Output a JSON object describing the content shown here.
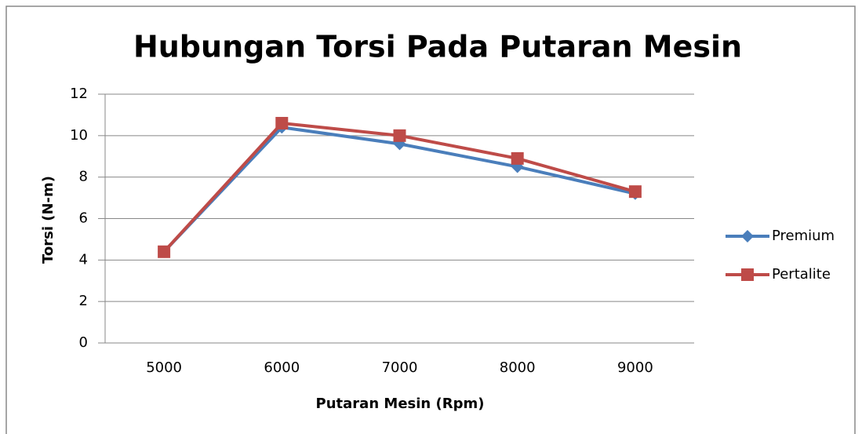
{
  "chart_data": {
    "type": "line",
    "title": "Hubungan Torsi Pada Putaran Mesin",
    "x_label": "Putaran Mesin (Rpm)",
    "y_label": "Torsi (N-m)",
    "categories": [
      "5000",
      "6000",
      "7000",
      "8000",
      "9000"
    ],
    "series": [
      {
        "name": "Premium",
        "color": "#4a7ebb",
        "marker": "diamond",
        "values": [
          4.4,
          10.4,
          9.6,
          8.5,
          7.2
        ]
      },
      {
        "name": "Pertalite",
        "color": "#be4b48",
        "marker": "square",
        "values": [
          4.4,
          10.6,
          10.0,
          8.9,
          7.3
        ]
      }
    ],
    "ylim": [
      0,
      12
    ],
    "yticks": [
      0,
      2,
      4,
      6,
      8,
      10,
      12
    ],
    "grid": true,
    "legend": "right"
  }
}
